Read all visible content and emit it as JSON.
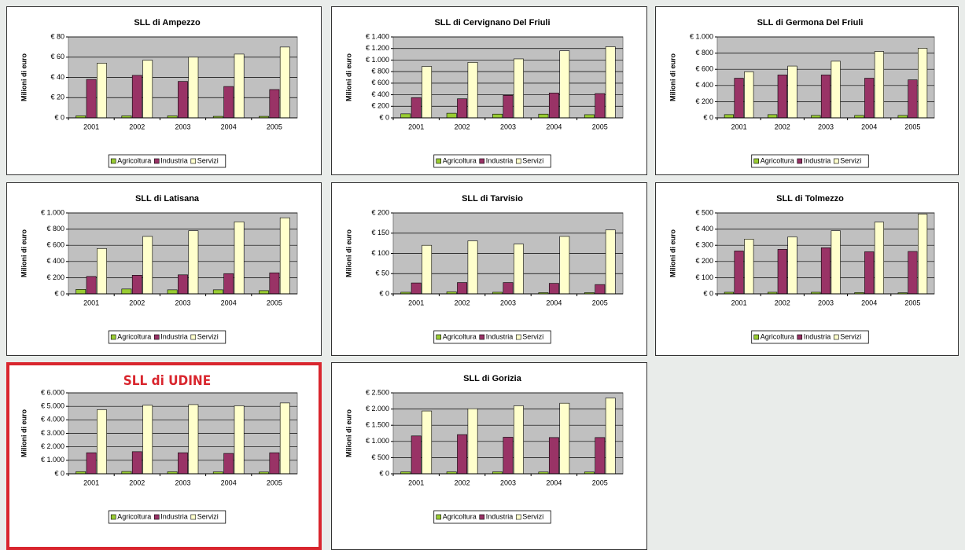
{
  "chart_data": [
    {
      "type": "bar",
      "title": "SLL di Ampezzo",
      "y_label": "Milioni di euro",
      "categories": [
        "2001",
        "2002",
        "2003",
        "2004",
        "2005"
      ],
      "series": [
        {
          "name": "Agricoltura",
          "color": "#99cc33",
          "values": [
            2,
            2,
            2,
            1.5,
            1.5
          ]
        },
        {
          "name": "Industria",
          "color": "#993366",
          "values": [
            38,
            42,
            36,
            31,
            28
          ]
        },
        {
          "name": "Servizi",
          "color": "#ffffcc",
          "values": [
            54,
            57,
            60,
            63,
            70
          ]
        }
      ],
      "ylim": [
        0,
        80
      ],
      "yticks": [
        {
          "value": 0,
          "label": "€ 0"
        },
        {
          "value": 20,
          "label": "€ 20"
        },
        {
          "value": 40,
          "label": "€ 40"
        },
        {
          "value": 60,
          "label": "€ 60"
        },
        {
          "value": 80,
          "label": "€ 80"
        }
      ],
      "grid": true
    },
    {
      "type": "bar",
      "title": "SLL di Cervignano Del Friuli",
      "y_label": "Milioni di euro",
      "categories": [
        "2001",
        "2002",
        "2003",
        "2004",
        "2005"
      ],
      "series": [
        {
          "name": "Agricoltura",
          "color": "#99cc33",
          "values": [
            70,
            80,
            65,
            65,
            55
          ]
        },
        {
          "name": "Industria",
          "color": "#993366",
          "values": [
            350,
            330,
            390,
            430,
            420
          ]
        },
        {
          "name": "Servizi",
          "color": "#ffffcc",
          "values": [
            890,
            960,
            1020,
            1160,
            1230
          ]
        }
      ],
      "ylim": [
        0,
        1400
      ],
      "yticks": [
        {
          "value": 0,
          "label": "€ 0"
        },
        {
          "value": 200,
          "label": "€ 200"
        },
        {
          "value": 400,
          "label": "€ 400"
        },
        {
          "value": 600,
          "label": "€ 600"
        },
        {
          "value": 800,
          "label": "€ 800"
        },
        {
          "value": 1000,
          "label": "€ 1.000"
        },
        {
          "value": 1200,
          "label": "€ 1.200"
        },
        {
          "value": 1400,
          "label": "€ 1.400"
        }
      ],
      "grid": true
    },
    {
      "type": "bar",
      "title": "SLL di Germona Del Friuli",
      "y_label": "Milioni di euro",
      "categories": [
        "2001",
        "2002",
        "2003",
        "2004",
        "2005"
      ],
      "series": [
        {
          "name": "Agricoltura",
          "color": "#99cc33",
          "values": [
            40,
            40,
            30,
            30,
            30
          ]
        },
        {
          "name": "Industria",
          "color": "#993366",
          "values": [
            490,
            530,
            530,
            490,
            470
          ]
        },
        {
          "name": "Servizi",
          "color": "#ffffcc",
          "values": [
            570,
            640,
            700,
            820,
            860
          ]
        }
      ],
      "ylim": [
        0,
        1000
      ],
      "yticks": [
        {
          "value": 0,
          "label": "€ 0"
        },
        {
          "value": 200,
          "label": "€ 200"
        },
        {
          "value": 400,
          "label": "€ 400"
        },
        {
          "value": 600,
          "label": "€ 600"
        },
        {
          "value": 800,
          "label": "€ 800"
        },
        {
          "value": 1000,
          "label": "€ 1.000"
        }
      ],
      "grid": true
    },
    {
      "type": "bar",
      "title": "SLL di Latisana",
      "y_label": "Milioni di euro",
      "categories": [
        "2001",
        "2002",
        "2003",
        "2004",
        "2005"
      ],
      "series": [
        {
          "name": "Agricoltura",
          "color": "#99cc33",
          "values": [
            55,
            60,
            50,
            50,
            40
          ]
        },
        {
          "name": "Industria",
          "color": "#993366",
          "values": [
            215,
            230,
            235,
            250,
            260
          ]
        },
        {
          "name": "Servizi",
          "color": "#ffffcc",
          "values": [
            560,
            710,
            780,
            890,
            940
          ]
        }
      ],
      "ylim": [
        0,
        1000
      ],
      "yticks": [
        {
          "value": 0,
          "label": "€ 0"
        },
        {
          "value": 200,
          "label": "€ 200"
        },
        {
          "value": 400,
          "label": "€ 400"
        },
        {
          "value": 600,
          "label": "€ 600"
        },
        {
          "value": 800,
          "label": "€ 800"
        },
        {
          "value": 1000,
          "label": "€ 1.000"
        }
      ],
      "grid": true
    },
    {
      "type": "bar",
      "title": "SLL di Tarvisio",
      "y_label": "Milioni di euro",
      "categories": [
        "2001",
        "2002",
        "2003",
        "2004",
        "2005"
      ],
      "series": [
        {
          "name": "Agricoltura",
          "color": "#99cc33",
          "values": [
            4,
            5,
            4,
            3,
            3
          ]
        },
        {
          "name": "Industria",
          "color": "#993366",
          "values": [
            27,
            28,
            28,
            26,
            23
          ]
        },
        {
          "name": "Servizi",
          "color": "#ffffcc",
          "values": [
            120,
            131,
            123,
            142,
            158
          ]
        }
      ],
      "ylim": [
        0,
        200
      ],
      "yticks": [
        {
          "value": 0,
          "label": "€ 0"
        },
        {
          "value": 50,
          "label": "€ 50"
        },
        {
          "value": 100,
          "label": "€ 100"
        },
        {
          "value": 150,
          "label": "€ 150"
        },
        {
          "value": 200,
          "label": "€ 200"
        }
      ],
      "grid": true
    },
    {
      "type": "bar",
      "title": "SLL di Tolmezzo",
      "y_label": "Milioni di euro",
      "categories": [
        "2001",
        "2002",
        "2003",
        "2004",
        "2005"
      ],
      "series": [
        {
          "name": "Agricoltura",
          "color": "#99cc33",
          "values": [
            10,
            10,
            10,
            8,
            7
          ]
        },
        {
          "name": "Industria",
          "color": "#993366",
          "values": [
            265,
            275,
            285,
            260,
            262
          ]
        },
        {
          "name": "Servizi",
          "color": "#ffffcc",
          "values": [
            338,
            352,
            390,
            443,
            493
          ]
        }
      ],
      "ylim": [
        0,
        500
      ],
      "yticks": [
        {
          "value": 0,
          "label": "€ 0"
        },
        {
          "value": 100,
          "label": "€ 100"
        },
        {
          "value": 200,
          "label": "€ 200"
        },
        {
          "value": 300,
          "label": "€ 300"
        },
        {
          "value": 400,
          "label": "€ 400"
        },
        {
          "value": 500,
          "label": "€ 500"
        }
      ],
      "grid": true
    },
    {
      "type": "bar",
      "title": "SLL di UDINE",
      "title_color": "#d9262e",
      "border_color": "#d9262e",
      "y_label": "Milioni di euro",
      "categories": [
        "2001",
        "2002",
        "2003",
        "2004",
        "2005"
      ],
      "series": [
        {
          "name": "Agricoltura",
          "color": "#99cc33",
          "values": [
            160,
            170,
            150,
            140,
            130
          ]
        },
        {
          "name": "Industria",
          "color": "#993366",
          "values": [
            1560,
            1640,
            1560,
            1510,
            1560
          ]
        },
        {
          "name": "Servizi",
          "color": "#ffffcc",
          "values": [
            4750,
            5080,
            5130,
            5040,
            5250
          ]
        }
      ],
      "ylim": [
        0,
        6000
      ],
      "yticks": [
        {
          "value": 0,
          "label": "€ 0"
        },
        {
          "value": 1000,
          "label": "€ 1.000"
        },
        {
          "value": 2000,
          "label": "€ 2.000"
        },
        {
          "value": 3000,
          "label": "€ 3.000"
        },
        {
          "value": 4000,
          "label": "€ 4.000"
        },
        {
          "value": 5000,
          "label": "€ 5.000"
        },
        {
          "value": 6000,
          "label": "€ 6.000"
        }
      ],
      "grid": true
    },
    {
      "type": "bar",
      "title": "SLL di Gorizia",
      "y_label": "Milioni di euro",
      "categories": [
        "2001",
        "2002",
        "2003",
        "2004",
        "2005"
      ],
      "series": [
        {
          "name": "Agricoltura",
          "color": "#99cc33",
          "values": [
            60,
            60,
            60,
            55,
            55
          ]
        },
        {
          "name": "Industria",
          "color": "#993366",
          "values": [
            1170,
            1210,
            1130,
            1120,
            1120
          ]
        },
        {
          "name": "Servizi",
          "color": "#ffffcc",
          "values": [
            1940,
            2010,
            2100,
            2180,
            2340
          ]
        }
      ],
      "ylim": [
        0,
        2500
      ],
      "yticks": [
        {
          "value": 0,
          "label": "€ 0"
        },
        {
          "value": 500,
          "label": "€ 500"
        },
        {
          "value": 1000,
          "label": "€ 1.000"
        },
        {
          "value": 1500,
          "label": "€ 1.500"
        },
        {
          "value": 2000,
          "label": "€ 2.000"
        },
        {
          "value": 2500,
          "label": "€ 2.500"
        }
      ],
      "grid": true
    }
  ]
}
